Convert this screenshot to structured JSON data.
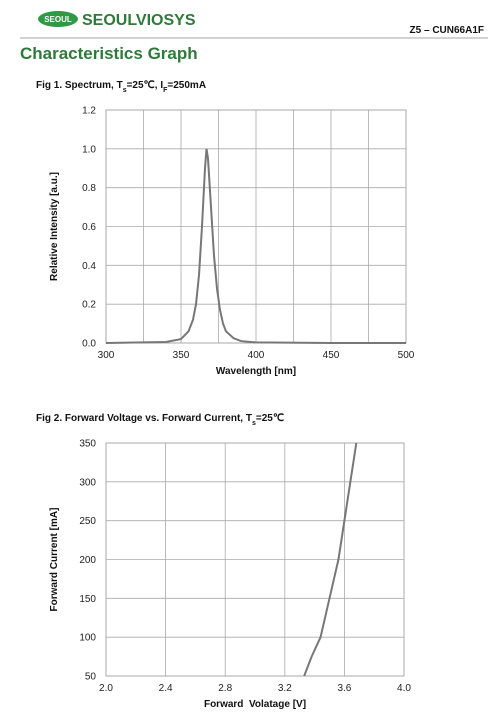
{
  "header": {
    "logo_badge": "SEOUL",
    "logo_text": "SEOULVIOSYS",
    "doc_id": "Z5 – CUN66A1F"
  },
  "section_title": "Characteristics Graph",
  "chart_data": [
    {
      "type": "line",
      "title": [
        {
          "text": "Fig 1. Spectrum, T"
        },
        {
          "text": "s",
          "sub": true
        },
        {
          "text": "=25℃, I"
        },
        {
          "text": "F",
          "sub": true
        },
        {
          "text": "=250mA"
        }
      ],
      "x_label": "Wavelength [nm]",
      "y_label": "Relative Intensity [a.u.]",
      "xlim": [
        300,
        500
      ],
      "xticks": [
        300,
        350,
        400,
        450,
        500
      ],
      "minor_xticks": [
        325,
        375,
        425,
        475
      ],
      "ylim": [
        0,
        1.2
      ],
      "yticks": [
        {
          "value": 0,
          "label": "0.0"
        },
        0.2,
        0.4,
        0.6,
        0.8,
        {
          "value": 1,
          "label": "1.0"
        },
        1.2
      ],
      "grid": true,
      "series": [
        {
          "color": "#777777",
          "x": [
            300,
            340,
            350,
            355,
            358,
            360,
            362,
            364,
            366,
            367,
            368,
            370,
            372,
            374,
            376,
            378,
            380,
            385,
            390,
            400,
            450,
            500
          ],
          "values": [
            0,
            0.005,
            0.02,
            0.06,
            0.12,
            0.2,
            0.35,
            0.6,
            0.9,
            1.0,
            0.95,
            0.7,
            0.45,
            0.28,
            0.17,
            0.1,
            0.06,
            0.025,
            0.01,
            0.003,
            0,
            0
          ]
        }
      ]
    },
    {
      "type": "line",
      "title": [
        {
          "text": "Fig 2. Forward Voltage vs. Forward Current, T"
        },
        {
          "text": "s",
          "sub": true
        },
        {
          "text": "=25℃"
        }
      ],
      "x_label": "Forward  Volatage [V]",
      "y_label": "Forward Current [mA]",
      "xlim": [
        2.0,
        4.0
      ],
      "xticks": [
        {
          "value": 2,
          "label": "2.0"
        },
        2.4,
        2.8,
        3.2,
        3.6,
        {
          "value": 4,
          "label": "4.0"
        }
      ],
      "ylim": [
        50,
        350
      ],
      "yticks": [
        50,
        100,
        150,
        200,
        250,
        300,
        350
      ],
      "grid": true,
      "series": [
        {
          "color": "#777777",
          "x": [
            3.33,
            3.38,
            3.44,
            3.5,
            3.56,
            3.6,
            3.64,
            3.68
          ],
          "values": [
            50,
            75,
            100,
            150,
            200,
            250,
            300,
            350
          ]
        }
      ]
    }
  ]
}
